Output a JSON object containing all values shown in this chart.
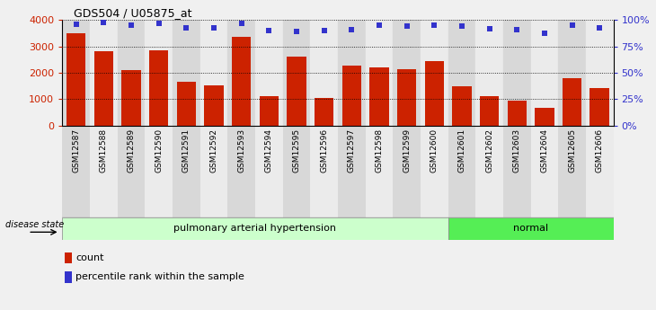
{
  "title": "GDS504 / U05875_at",
  "samples": [
    "GSM12587",
    "GSM12588",
    "GSM12589",
    "GSM12590",
    "GSM12591",
    "GSM12592",
    "GSM12593",
    "GSM12594",
    "GSM12595",
    "GSM12596",
    "GSM12597",
    "GSM12598",
    "GSM12599",
    "GSM12600",
    "GSM12601",
    "GSM12602",
    "GSM12603",
    "GSM12604",
    "GSM12605",
    "GSM12606"
  ],
  "counts": [
    3500,
    2830,
    2090,
    2870,
    1650,
    1540,
    3380,
    1130,
    2630,
    1060,
    2280,
    2210,
    2150,
    2460,
    1490,
    1130,
    960,
    660,
    1790,
    1410
  ],
  "percentiles": [
    96,
    98,
    95,
    97,
    93,
    93,
    97,
    90,
    89,
    90,
    91,
    95,
    94,
    95,
    94,
    92,
    91,
    88,
    95,
    93
  ],
  "bar_color": "#cc2200",
  "dot_color": "#3333cc",
  "ylim_left": [
    0,
    4000
  ],
  "ylim_right": [
    0,
    100
  ],
  "yticks_left": [
    0,
    1000,
    2000,
    3000,
    4000
  ],
  "ytick_labels_left": [
    "0",
    "1000",
    "2000",
    "3000",
    "4000"
  ],
  "yticks_right": [
    0,
    25,
    50,
    75,
    100
  ],
  "ytick_labels_right": [
    "0%",
    "25%",
    "50%",
    "75%",
    "100%"
  ],
  "group1_count": 14,
  "group1_label": "pulmonary arterial hypertension",
  "group2_label": "normal",
  "group1_color": "#ccffcc",
  "group2_color": "#55ee55",
  "disease_state_label": "disease state",
  "legend_count": "count",
  "legend_pct": "percentile rank within the sample",
  "plot_bg_color": "#ffffff",
  "col_odd_color": "#d8d8d8",
  "col_even_color": "#ebebeb",
  "fig_bg_color": "#f0f0f0"
}
